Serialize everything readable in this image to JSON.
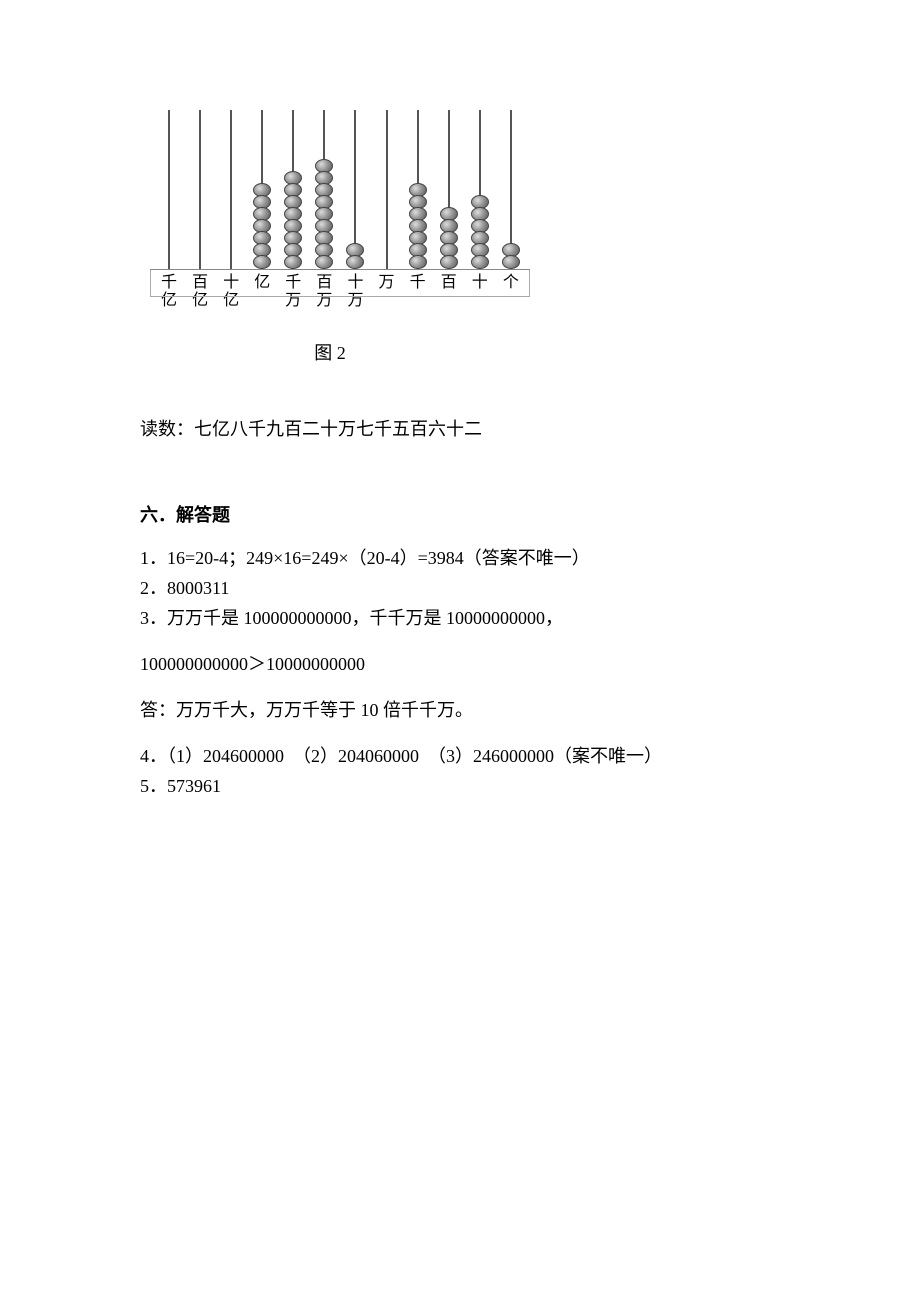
{
  "abacus": {
    "places": [
      "千亿",
      "百亿",
      "十亿",
      "亿",
      "千万",
      "百万",
      "十万",
      "万",
      "千",
      "百",
      "十",
      "个"
    ],
    "beads": [
      0,
      0,
      0,
      7,
      8,
      9,
      2,
      0,
      7,
      5,
      6,
      2
    ],
    "bead_fill_gradient": "radial-gradient(circle at 35% 35%, #ddd 0%, #999 45%, #555 100%)",
    "stick_color": "#555",
    "frame_border_color": "#aaa",
    "caption": "图 2"
  },
  "reading": {
    "label": "读数：",
    "text": "七亿八千九百二十万七千五百六十二"
  },
  "section6": {
    "title": "六．解答题",
    "items": {
      "q1": "1．16=20-4；249×16=249×（20-4）=3984（答案不唯一）",
      "q2": "2．8000311",
      "q3a": "3．万万千是 100000000000，千千万是 10000000000，",
      "q3b": "100000000000＞10000000000",
      "q3c": "答：万万千大，万万千等于 10 倍千千万。",
      "q4": "4．（1）204600000　（2）204060000　（3）246000000（案不唯一）",
      "q5": "5．573961"
    }
  },
  "colors": {
    "page_bg": "#ffffff",
    "text": "#000000"
  }
}
